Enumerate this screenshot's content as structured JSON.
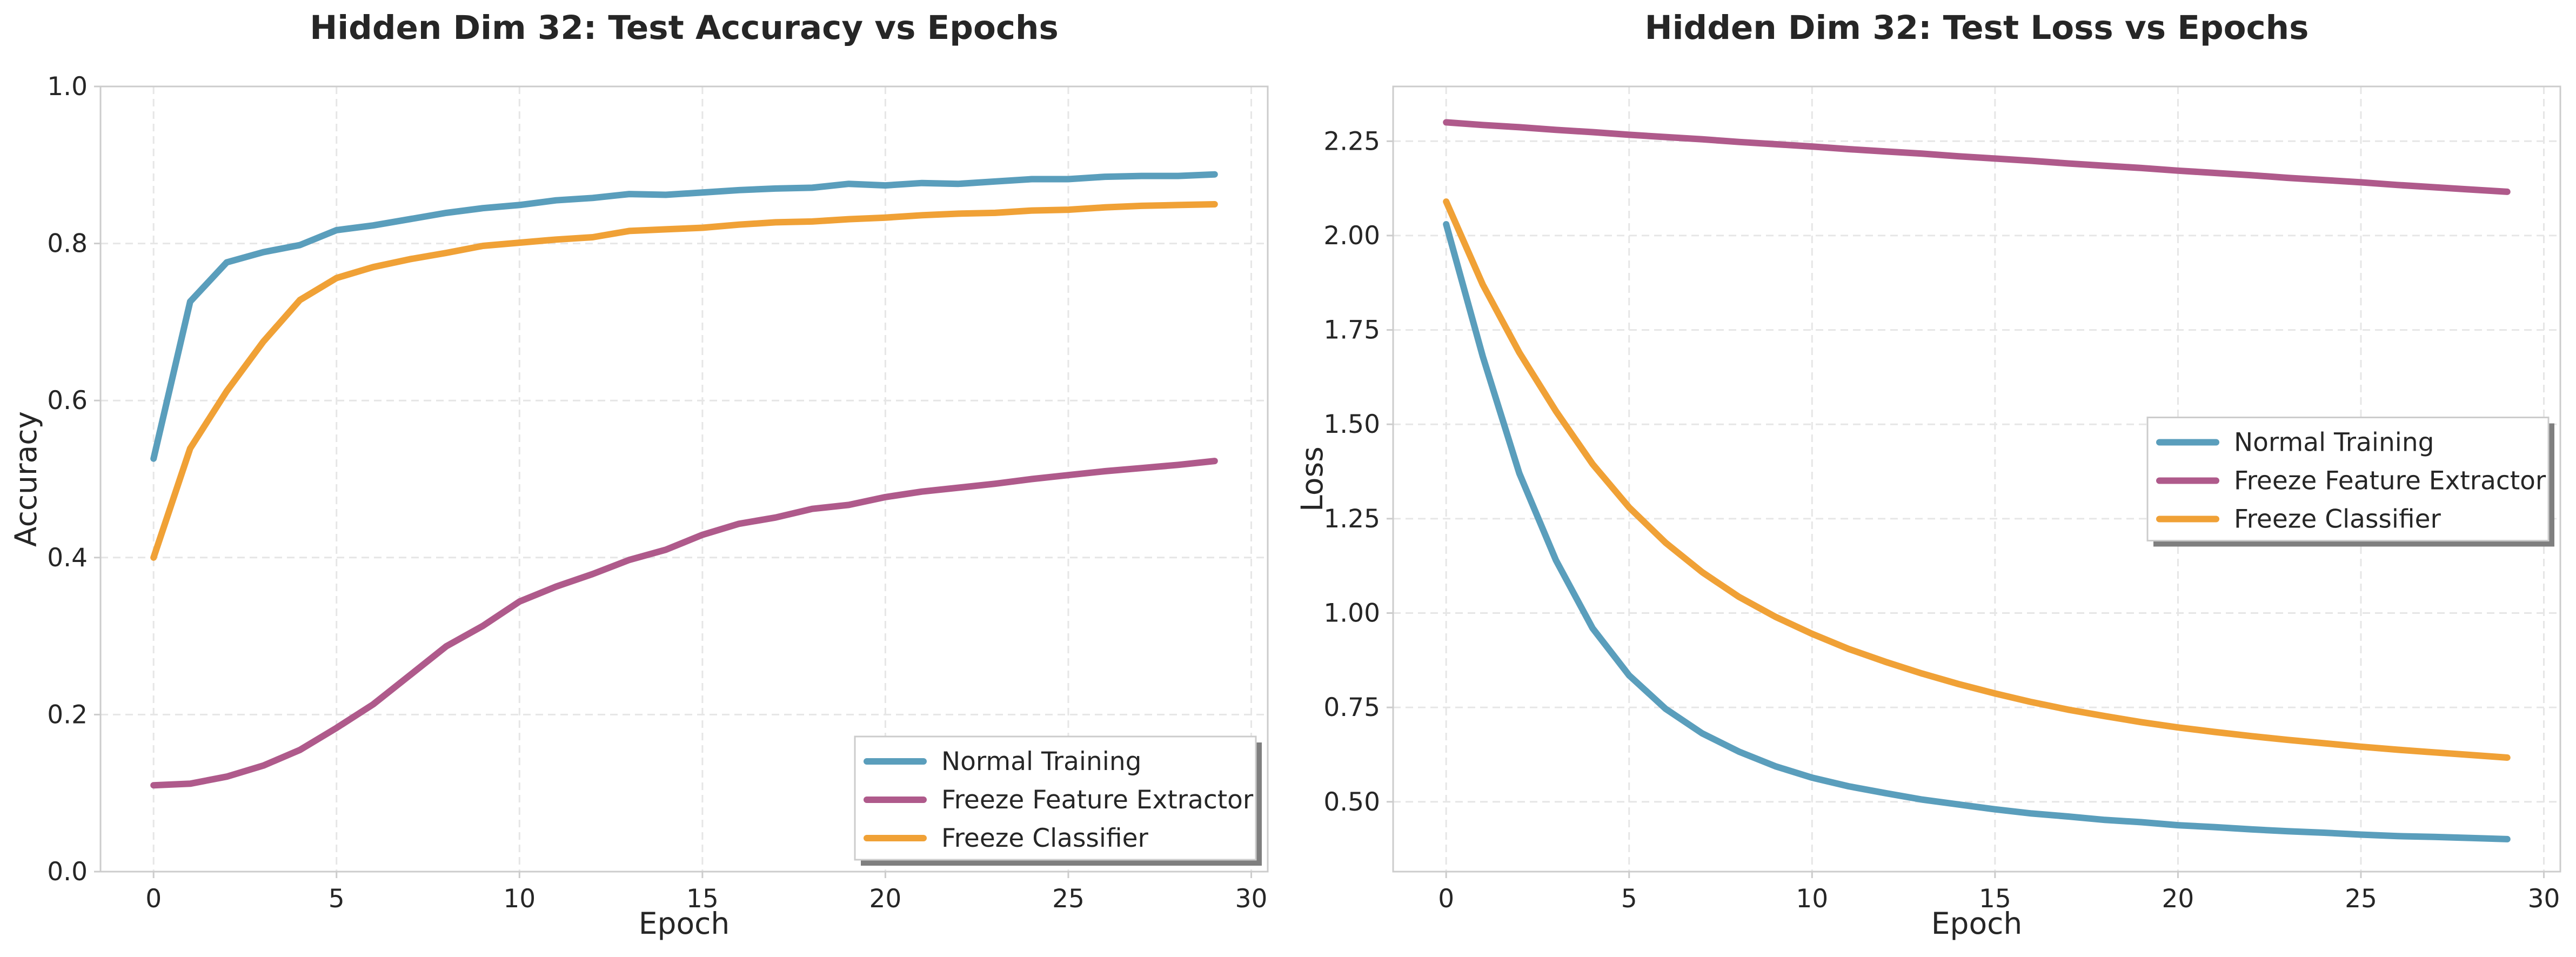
{
  "colors": {
    "normal": "#5A9EBC",
    "freeze_fe": "#AF5A8B",
    "freeze_cls": "#F0A136",
    "text": "#262626",
    "frame": "#cccccc",
    "grid": "#e6e6e6"
  },
  "chart_data": [
    {
      "type": "line",
      "title": "Hidden Dim 32: Test Accuracy vs Epochs",
      "xlabel": "Epoch",
      "ylabel": "Accuracy",
      "xlim": [
        -1.45,
        30.45
      ],
      "ylim": [
        0.0,
        1.0
      ],
      "xticks": [
        0,
        5,
        10,
        15,
        20,
        25,
        30
      ],
      "yticks": [
        0.0,
        0.2,
        0.4,
        0.6,
        0.8,
        1.0
      ],
      "ytick_labels": [
        "0.0",
        "0.2",
        "0.4",
        "0.6",
        "0.8",
        "1.0"
      ],
      "grid": true,
      "legend": "lower right",
      "x": [
        0,
        1,
        2,
        3,
        4,
        5,
        6,
        7,
        8,
        9,
        10,
        11,
        12,
        13,
        14,
        15,
        16,
        17,
        18,
        19,
        20,
        21,
        22,
        23,
        24,
        25,
        26,
        27,
        28,
        29
      ],
      "series": [
        {
          "name": "Normal Training",
          "color": "#5A9EBC",
          "values": [
            0.526,
            0.726,
            0.776,
            0.789,
            0.798,
            0.817,
            0.823,
            0.831,
            0.839,
            0.845,
            0.849,
            0.855,
            0.858,
            0.863,
            0.862,
            0.865,
            0.868,
            0.87,
            0.871,
            0.876,
            0.874,
            0.877,
            0.876,
            0.879,
            0.882,
            0.882,
            0.885,
            0.886,
            0.886,
            0.888
          ]
        },
        {
          "name": "Freeze Feature Extractor",
          "color": "#AF5A8B",
          "values": [
            0.11,
            0.112,
            0.121,
            0.135,
            0.155,
            0.183,
            0.213,
            0.25,
            0.287,
            0.313,
            0.344,
            0.363,
            0.379,
            0.397,
            0.41,
            0.429,
            0.443,
            0.451,
            0.462,
            0.467,
            0.477,
            0.484,
            0.489,
            0.494,
            0.5,
            0.505,
            0.51,
            0.514,
            0.518,
            0.523
          ]
        },
        {
          "name": "Freeze Classifier",
          "color": "#F0A136",
          "values": [
            0.4,
            0.539,
            0.612,
            0.675,
            0.728,
            0.756,
            0.77,
            0.78,
            0.788,
            0.797,
            0.801,
            0.805,
            0.808,
            0.816,
            0.818,
            0.82,
            0.824,
            0.827,
            0.828,
            0.831,
            0.833,
            0.836,
            0.838,
            0.839,
            0.842,
            0.843,
            0.846,
            0.848,
            0.849,
            0.85
          ]
        }
      ]
    },
    {
      "type": "line",
      "title": "Hidden Dim 32: Test Loss vs Epochs",
      "xlabel": "Epoch",
      "ylabel": "Loss",
      "xlim": [
        -1.45,
        30.45
      ],
      "ylim": [
        0.315,
        2.395
      ],
      "xticks": [
        0,
        5,
        10,
        15,
        20,
        25,
        30
      ],
      "yticks": [
        0.5,
        0.75,
        1.0,
        1.25,
        1.5,
        1.75,
        2.0,
        2.25
      ],
      "ytick_labels": [
        "0.50",
        "0.75",
        "1.00",
        "1.25",
        "1.50",
        "1.75",
        "2.00",
        "2.25"
      ],
      "grid": true,
      "legend": "center right",
      "x": [
        0,
        1,
        2,
        3,
        4,
        5,
        6,
        7,
        8,
        9,
        10,
        11,
        12,
        13,
        14,
        15,
        16,
        17,
        18,
        19,
        20,
        21,
        22,
        23,
        24,
        25,
        26,
        27,
        28,
        29
      ],
      "series": [
        {
          "name": "Normal Training",
          "color": "#5A9EBC",
          "values": [
            2.03,
            1.68,
            1.37,
            1.14,
            0.96,
            0.835,
            0.746,
            0.681,
            0.633,
            0.594,
            0.564,
            0.541,
            0.523,
            0.506,
            0.493,
            0.48,
            0.469,
            0.461,
            0.452,
            0.446,
            0.438,
            0.433,
            0.427,
            0.422,
            0.418,
            0.413,
            0.409,
            0.407,
            0.404,
            0.401
          ]
        },
        {
          "name": "Freeze Feature Extractor",
          "color": "#AF5A8B",
          "values": [
            2.3,
            2.293,
            2.287,
            2.28,
            2.274,
            2.267,
            2.261,
            2.255,
            2.248,
            2.242,
            2.236,
            2.229,
            2.223,
            2.217,
            2.21,
            2.204,
            2.198,
            2.191,
            2.185,
            2.179,
            2.172,
            2.166,
            2.16,
            2.153,
            2.147,
            2.141,
            2.134,
            2.128,
            2.122,
            2.116
          ]
        },
        {
          "name": "Freeze Classifier",
          "color": "#F0A136",
          "values": [
            2.09,
            1.87,
            1.69,
            1.535,
            1.395,
            1.28,
            1.186,
            1.108,
            1.043,
            0.99,
            0.945,
            0.905,
            0.871,
            0.84,
            0.812,
            0.787,
            0.764,
            0.744,
            0.727,
            0.711,
            0.697,
            0.685,
            0.674,
            0.664,
            0.655,
            0.646,
            0.638,
            0.631,
            0.624,
            0.617
          ]
        }
      ]
    }
  ]
}
